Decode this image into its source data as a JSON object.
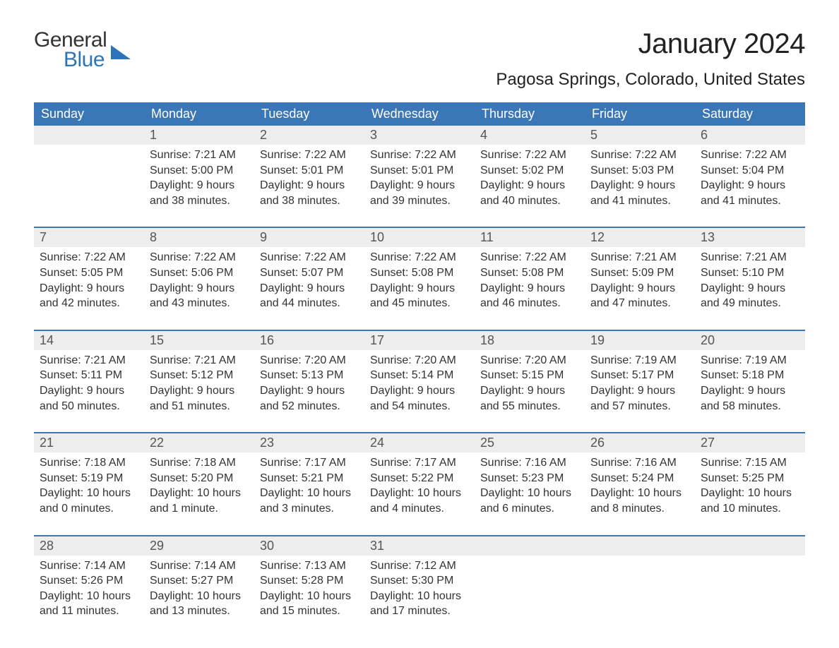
{
  "logo": {
    "text_general": "General",
    "text_blue": "Blue",
    "tri_color": "#2b74b8"
  },
  "header": {
    "month_title": "January 2024",
    "location": "Pagosa Springs, Colorado, United States"
  },
  "colors": {
    "header_bg": "#3b76b6",
    "header_text": "#ffffff",
    "daynum_bg": "#ededed",
    "week_divider": "#3b76b6",
    "body_text": "#333333",
    "logo_blue": "#2b74b8"
  },
  "typography": {
    "title_fontsize": 40,
    "location_fontsize": 24,
    "dayhead_fontsize": 18,
    "daynum_fontsize": 18,
    "cell_fontsize": 16
  },
  "day_headers": [
    "Sunday",
    "Monday",
    "Tuesday",
    "Wednesday",
    "Thursday",
    "Friday",
    "Saturday"
  ],
  "labels": {
    "sunrise": "Sunrise: ",
    "sunset": "Sunset: ",
    "daylight": "Daylight: "
  },
  "weeks": [
    [
      null,
      {
        "n": "1",
        "sunrise": "7:21 AM",
        "sunset": "5:00 PM",
        "daylight": "9 hours and 38 minutes."
      },
      {
        "n": "2",
        "sunrise": "7:22 AM",
        "sunset": "5:01 PM",
        "daylight": "9 hours and 38 minutes."
      },
      {
        "n": "3",
        "sunrise": "7:22 AM",
        "sunset": "5:01 PM",
        "daylight": "9 hours and 39 minutes."
      },
      {
        "n": "4",
        "sunrise": "7:22 AM",
        "sunset": "5:02 PM",
        "daylight": "9 hours and 40 minutes."
      },
      {
        "n": "5",
        "sunrise": "7:22 AM",
        "sunset": "5:03 PM",
        "daylight": "9 hours and 41 minutes."
      },
      {
        "n": "6",
        "sunrise": "7:22 AM",
        "sunset": "5:04 PM",
        "daylight": "9 hours and 41 minutes."
      }
    ],
    [
      {
        "n": "7",
        "sunrise": "7:22 AM",
        "sunset": "5:05 PM",
        "daylight": "9 hours and 42 minutes."
      },
      {
        "n": "8",
        "sunrise": "7:22 AM",
        "sunset": "5:06 PM",
        "daylight": "9 hours and 43 minutes."
      },
      {
        "n": "9",
        "sunrise": "7:22 AM",
        "sunset": "5:07 PM",
        "daylight": "9 hours and 44 minutes."
      },
      {
        "n": "10",
        "sunrise": "7:22 AM",
        "sunset": "5:08 PM",
        "daylight": "9 hours and 45 minutes."
      },
      {
        "n": "11",
        "sunrise": "7:22 AM",
        "sunset": "5:08 PM",
        "daylight": "9 hours and 46 minutes."
      },
      {
        "n": "12",
        "sunrise": "7:21 AM",
        "sunset": "5:09 PM",
        "daylight": "9 hours and 47 minutes."
      },
      {
        "n": "13",
        "sunrise": "7:21 AM",
        "sunset": "5:10 PM",
        "daylight": "9 hours and 49 minutes."
      }
    ],
    [
      {
        "n": "14",
        "sunrise": "7:21 AM",
        "sunset": "5:11 PM",
        "daylight": "9 hours and 50 minutes."
      },
      {
        "n": "15",
        "sunrise": "7:21 AM",
        "sunset": "5:12 PM",
        "daylight": "9 hours and 51 minutes."
      },
      {
        "n": "16",
        "sunrise": "7:20 AM",
        "sunset": "5:13 PM",
        "daylight": "9 hours and 52 minutes."
      },
      {
        "n": "17",
        "sunrise": "7:20 AM",
        "sunset": "5:14 PM",
        "daylight": "9 hours and 54 minutes."
      },
      {
        "n": "18",
        "sunrise": "7:20 AM",
        "sunset": "5:15 PM",
        "daylight": "9 hours and 55 minutes."
      },
      {
        "n": "19",
        "sunrise": "7:19 AM",
        "sunset": "5:17 PM",
        "daylight": "9 hours and 57 minutes."
      },
      {
        "n": "20",
        "sunrise": "7:19 AM",
        "sunset": "5:18 PM",
        "daylight": "9 hours and 58 minutes."
      }
    ],
    [
      {
        "n": "21",
        "sunrise": "7:18 AM",
        "sunset": "5:19 PM",
        "daylight": "10 hours and 0 minutes."
      },
      {
        "n": "22",
        "sunrise": "7:18 AM",
        "sunset": "5:20 PM",
        "daylight": "10 hours and 1 minute."
      },
      {
        "n": "23",
        "sunrise": "7:17 AM",
        "sunset": "5:21 PM",
        "daylight": "10 hours and 3 minutes."
      },
      {
        "n": "24",
        "sunrise": "7:17 AM",
        "sunset": "5:22 PM",
        "daylight": "10 hours and 4 minutes."
      },
      {
        "n": "25",
        "sunrise": "7:16 AM",
        "sunset": "5:23 PM",
        "daylight": "10 hours and 6 minutes."
      },
      {
        "n": "26",
        "sunrise": "7:16 AM",
        "sunset": "5:24 PM",
        "daylight": "10 hours and 8 minutes."
      },
      {
        "n": "27",
        "sunrise": "7:15 AM",
        "sunset": "5:25 PM",
        "daylight": "10 hours and 10 minutes."
      }
    ],
    [
      {
        "n": "28",
        "sunrise": "7:14 AM",
        "sunset": "5:26 PM",
        "daylight": "10 hours and 11 minutes."
      },
      {
        "n": "29",
        "sunrise": "7:14 AM",
        "sunset": "5:27 PM",
        "daylight": "10 hours and 13 minutes."
      },
      {
        "n": "30",
        "sunrise": "7:13 AM",
        "sunset": "5:28 PM",
        "daylight": "10 hours and 15 minutes."
      },
      {
        "n": "31",
        "sunrise": "7:12 AM",
        "sunset": "5:30 PM",
        "daylight": "10 hours and 17 minutes."
      },
      null,
      null,
      null
    ]
  ]
}
